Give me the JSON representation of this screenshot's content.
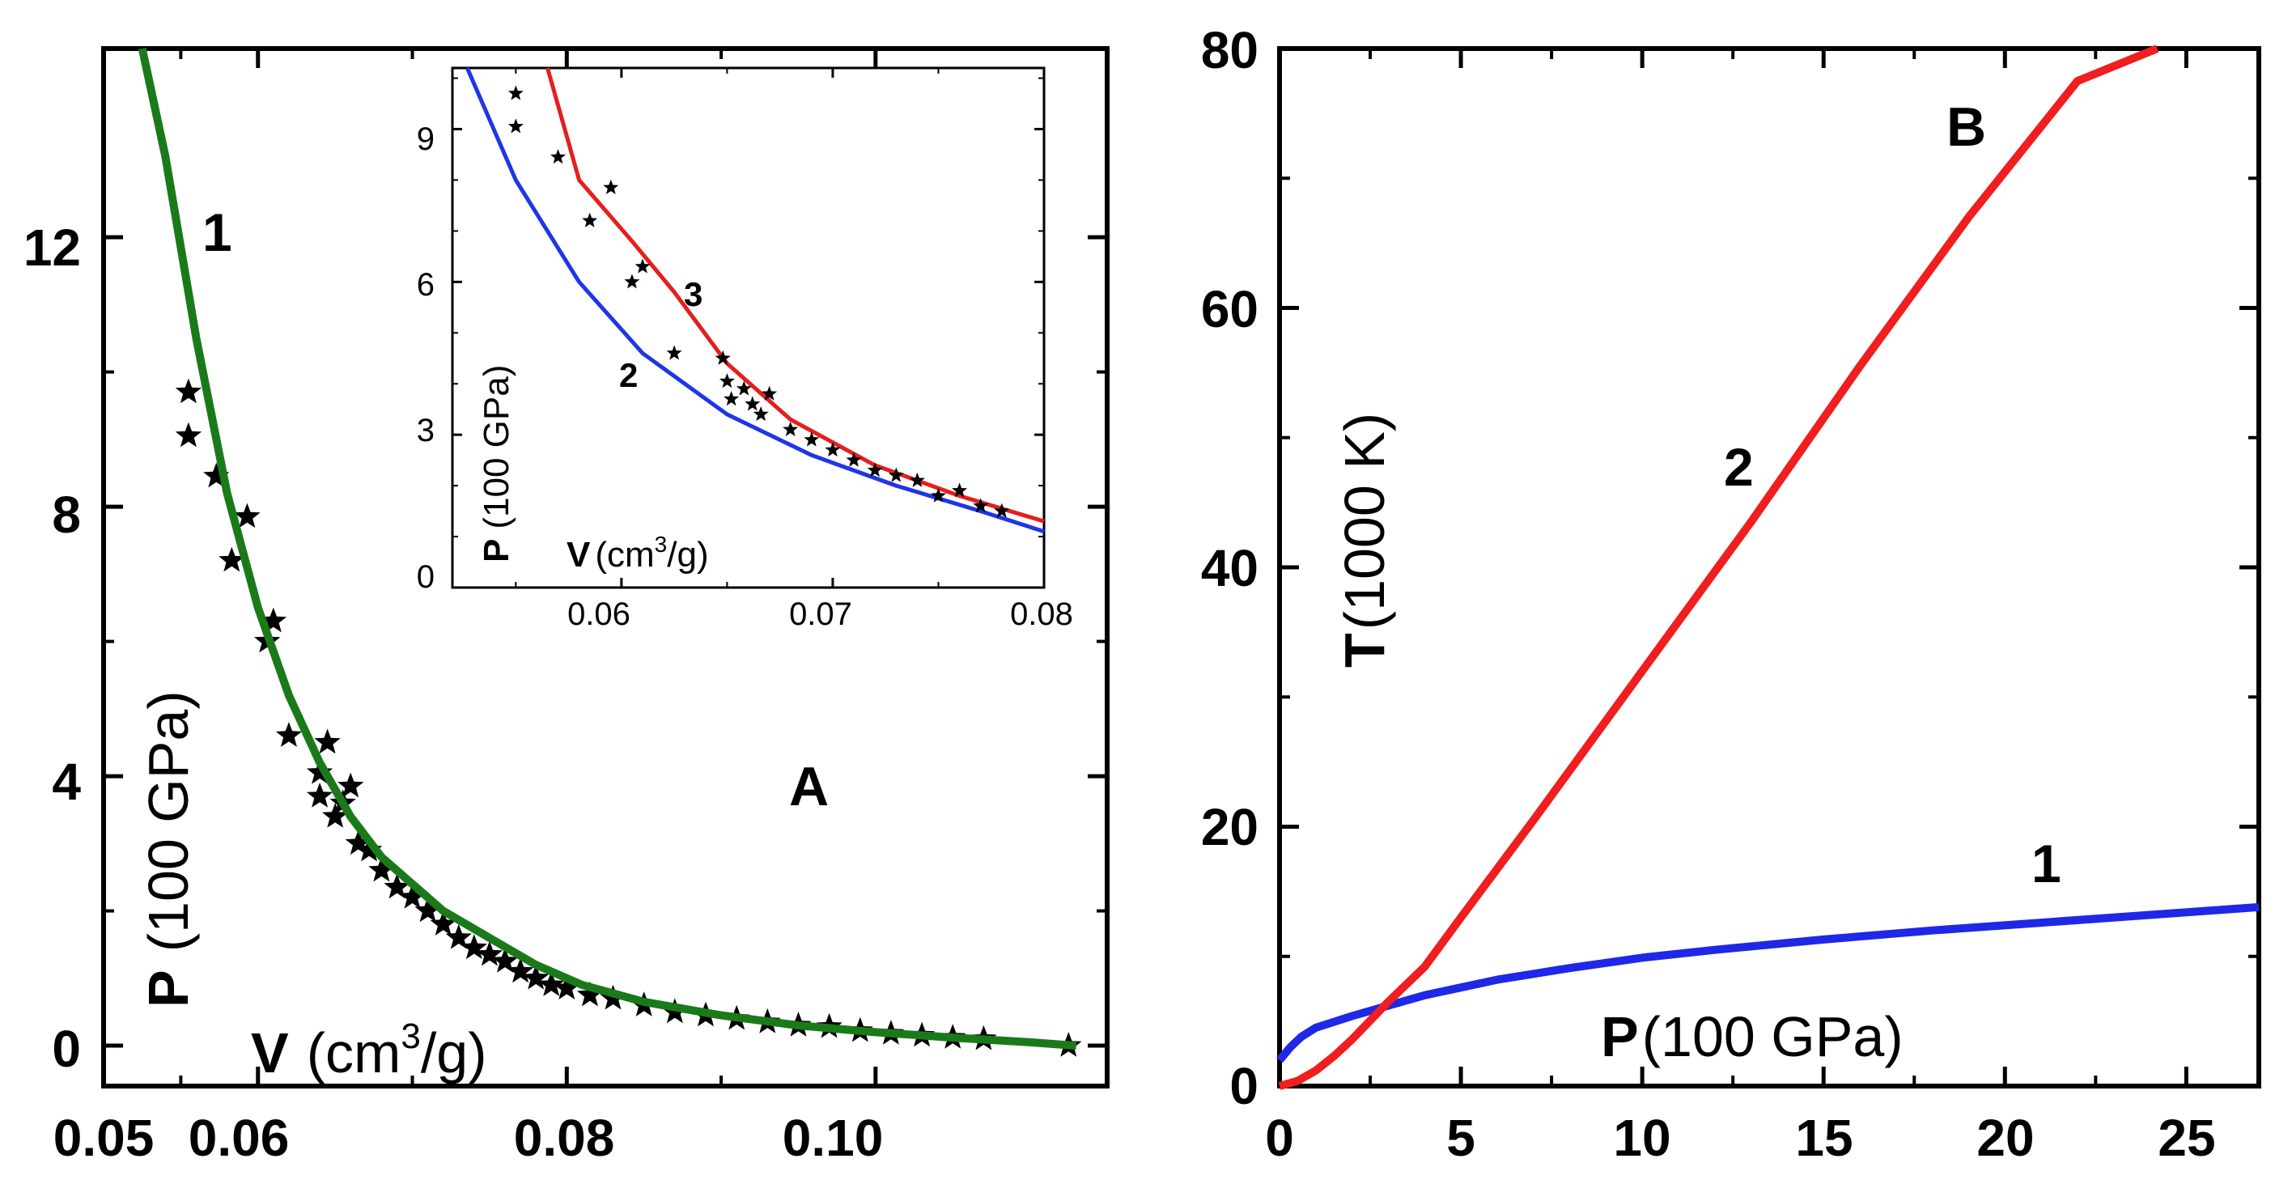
{
  "chart_data": [
    {
      "panel": "A",
      "type": "line",
      "panel_label": "A",
      "xlabel_sym": "V",
      "xlabel": "(cm",
      "xlabel_sup": "3",
      "xlabel_end": "/g)",
      "ylabel_sym": "P",
      "ylabel": "(100 GPa)",
      "xlim": [
        0.05,
        0.115
      ],
      "ylim": [
        -0.6,
        14.8
      ],
      "xticks": [
        "0.05",
        "0.06",
        "0.08",
        "0.10"
      ],
      "xtick_values": [
        0.05,
        0.06,
        0.08,
        0.1
      ],
      "yticks": [
        "0",
        "4",
        "8",
        "12"
      ],
      "ytick_values": [
        0,
        4,
        8,
        12
      ],
      "series": [
        {
          "name": "1",
          "label": "1",
          "color": "#1a7a1a",
          "x": [
            0.0525,
            0.054,
            0.056,
            0.058,
            0.06,
            0.062,
            0.064,
            0.066,
            0.068,
            0.07,
            0.072,
            0.075,
            0.078,
            0.081,
            0.085,
            0.09,
            0.095,
            0.1,
            0.105,
            0.11,
            0.113
          ],
          "y": [
            14.8,
            13.2,
            10.5,
            8.2,
            6.5,
            5.2,
            4.2,
            3.4,
            2.8,
            2.4,
            2.0,
            1.6,
            1.2,
            0.9,
            0.65,
            0.45,
            0.3,
            0.2,
            0.12,
            0.05,
            0.0
          ]
        }
      ],
      "points": {
        "name": "data",
        "x": [
          0.0555,
          0.0555,
          0.0573,
          0.0583,
          0.0593,
          0.0606,
          0.061,
          0.062,
          0.064,
          0.064,
          0.0645,
          0.065,
          0.0655,
          0.066,
          0.0665,
          0.0672,
          0.068,
          0.069,
          0.07,
          0.071,
          0.072,
          0.073,
          0.074,
          0.075,
          0.076,
          0.077,
          0.078,
          0.079,
          0.08,
          0.0815,
          0.083,
          0.085,
          0.087,
          0.089,
          0.091,
          0.093,
          0.095,
          0.097,
          0.099,
          0.101,
          0.103,
          0.105,
          0.107,
          0.1125
        ],
        "y": [
          9.7,
          9.05,
          8.45,
          7.2,
          7.85,
          6.0,
          6.3,
          4.6,
          4.05,
          3.7,
          4.5,
          3.4,
          3.6,
          3.85,
          3.0,
          2.9,
          2.6,
          2.35,
          2.2,
          2.0,
          1.8,
          1.6,
          1.45,
          1.35,
          1.25,
          1.1,
          1.0,
          0.9,
          0.85,
          0.75,
          0.7,
          0.6,
          0.5,
          0.45,
          0.4,
          0.35,
          0.3,
          0.28,
          0.22,
          0.18,
          0.15,
          0.12,
          0.1,
          0.0
        ]
      },
      "inset": {
        "xlim": [
          0.052,
          0.08
        ],
        "ylim": [
          0,
          10.2
        ],
        "xticks": [
          "0.06",
          "0.07",
          "0.08"
        ],
        "xtick_values": [
          0.06,
          0.07,
          0.08
        ],
        "yticks": [
          "0",
          "3",
          "6",
          "9"
        ],
        "ytick_values": [
          0,
          3,
          6,
          9
        ],
        "xlabel_sym": "V",
        "xlabel": "(cm",
        "xlabel_sup": "3",
        "xlabel_end": "/g)",
        "ylabel_sym": "P",
        "ylabel": "(100 GPa)",
        "series": [
          {
            "name": "2",
            "label": "2",
            "color": "#1f35e6",
            "x": [
              0.0527,
              0.055,
              0.058,
              0.061,
              0.065,
              0.069,
              0.073,
              0.077,
              0.08
            ],
            "y": [
              10.2,
              8.0,
              6.0,
              4.6,
              3.4,
              2.6,
              2.0,
              1.5,
              1.1
            ]
          },
          {
            "name": "3",
            "label": "3",
            "color": "#e61e1e",
            "x": [
              0.0565,
              0.058,
              0.0605,
              0.0625,
              0.065,
              0.068,
              0.072,
              0.076,
              0.08
            ],
            "y": [
              10.2,
              8.0,
              6.8,
              5.8,
              4.4,
              3.3,
              2.4,
              1.8,
              1.3
            ]
          }
        ],
        "points": {
          "x": [
            0.055,
            0.055,
            0.057,
            0.0585,
            0.0595,
            0.0605,
            0.061,
            0.0625,
            0.0648,
            0.065,
            0.0652,
            0.0658,
            0.0662,
            0.0666,
            0.067,
            0.068,
            0.069,
            0.07,
            0.071,
            0.072,
            0.073,
            0.074,
            0.075,
            0.076,
            0.077,
            0.078
          ],
          "y": [
            9.7,
            9.05,
            8.45,
            7.2,
            7.85,
            6.0,
            6.3,
            4.6,
            4.5,
            4.05,
            3.7,
            3.9,
            3.6,
            3.4,
            3.8,
            3.1,
            2.9,
            2.7,
            2.5,
            2.3,
            2.2,
            2.1,
            1.8,
            1.9,
            1.6,
            1.5
          ]
        }
      }
    },
    {
      "panel": "B",
      "type": "line",
      "panel_label": "B",
      "xlabel_sym": "P",
      "xlabel": "(100 GPa)",
      "ylabel_sym": "T",
      "ylabel": "(1000 K)",
      "xlim": [
        0,
        27
      ],
      "ylim": [
        0,
        80
      ],
      "xticks": [
        "0",
        "5",
        "10",
        "15",
        "20",
        "25"
      ],
      "xtick_values": [
        0,
        5,
        10,
        15,
        20,
        25
      ],
      "yticks": [
        "0",
        "20",
        "40",
        "60",
        "80"
      ],
      "ytick_values": [
        0,
        20,
        40,
        60,
        80
      ],
      "series": [
        {
          "name": "1",
          "label": "1",
          "color": "#1f28e6",
          "x": [
            0,
            0.3,
            0.6,
            1,
            2,
            3,
            4,
            5,
            6,
            8,
            10,
            12,
            15,
            18,
            21,
            24,
            27
          ],
          "y": [
            2.0,
            3.0,
            3.8,
            4.5,
            5.4,
            6.2,
            7.0,
            7.6,
            8.2,
            9.1,
            9.9,
            10.5,
            11.3,
            12.0,
            12.6,
            13.2,
            13.8
          ]
        },
        {
          "name": "2",
          "label": "2",
          "color": "#f01e1e",
          "x": [
            0,
            0.5,
            1,
            1.5,
            2,
            3,
            4,
            5,
            7,
            10,
            13,
            16,
            19,
            22,
            24.2
          ],
          "y": [
            0.0,
            0.4,
            1.2,
            2.3,
            3.6,
            6.5,
            9.2,
            13.0,
            20.5,
            32.0,
            43.5,
            55.5,
            67.0,
            77.5,
            80.0
          ]
        }
      ]
    }
  ]
}
